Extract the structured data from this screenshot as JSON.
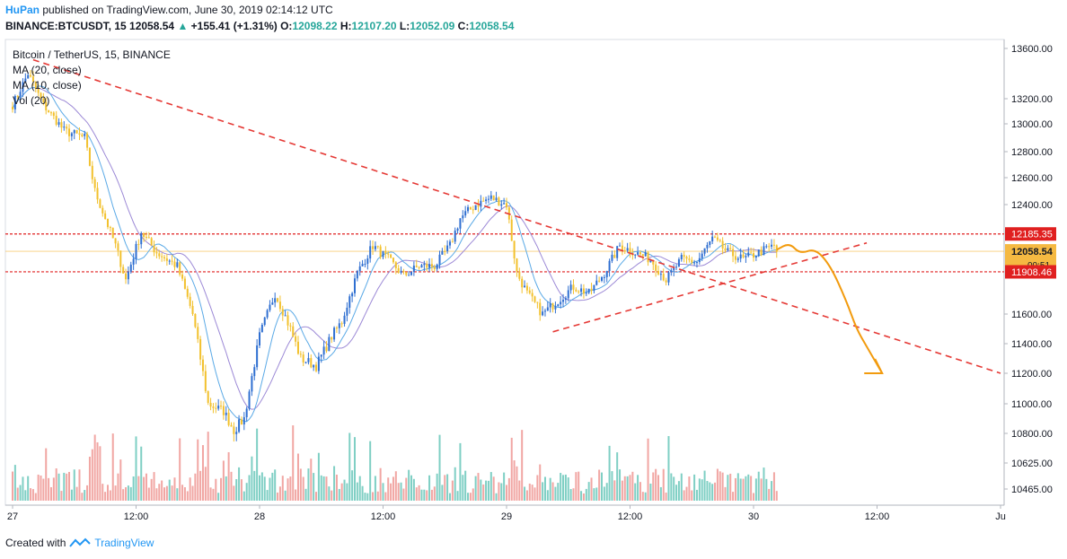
{
  "header": {
    "author": "HuPan",
    "published": "published on TradingView.com, June 30, 2019 02:14:12 UTC",
    "symbol": "BINANCE:BTCUSDT, 15",
    "last": "12058.54",
    "change": "+155.41 (+1.31%)",
    "o_label": "O:",
    "o": "12098.22",
    "h_label": "H:",
    "h": "12107.20",
    "l_label": "L:",
    "l": "12052.09",
    "c_label": "C:",
    "c": "12058.54"
  },
  "legend": {
    "title": "Bitcoin / TetherUS, 15, BINANCE",
    "ma20": "MA (20, close)",
    "ma10": "MA (10, close)",
    "vol": "Vol (20)"
  },
  "price_tags": {
    "upper_level": "12185.35",
    "last_price": "12058.54",
    "countdown": "00:51",
    "lower_level": "11908.46"
  },
  "footer": {
    "created_with": "Created with",
    "brand": "TradingView"
  },
  "colors": {
    "up": "#2f6fd1",
    "down": "#f2c12e",
    "ma20": "#9c89d6",
    "ma10": "#5aa9e6",
    "level": "#e02020",
    "trend": "#e53935",
    "forecast": "#f29b0e",
    "vol_up": "#7fcfc4",
    "vol_down": "#f1a6a3",
    "last_tag": "#f5b942"
  },
  "chart_data": {
    "type": "candlestick",
    "symbol": "BINANCE:BTCUSDT",
    "interval_minutes": 15,
    "y_axis_ticks": [
      13600,
      13200,
      13000,
      12800,
      12600,
      12400,
      12185.35,
      12058.54,
      11908.46,
      11600,
      11400,
      11200,
      11000,
      10800,
      10625,
      10465
    ],
    "y_axis_tick_labels": [
      "13600.00",
      "13200.00",
      "13000.00",
      "12800.00",
      "12600.00",
      "12400.00",
      "12185.35",
      "12058.54",
      "11908.46",
      "11600.00",
      "11400.00",
      "11200.00",
      "11000.00",
      "10800.00",
      "10625.00",
      "10465.00"
    ],
    "x_axis_tick_labels": [
      "27",
      "12:00",
      "28",
      "12:00",
      "29",
      "12:00",
      "30",
      "12:00",
      "Ju"
    ],
    "x_start": "2019-06-27 00:00",
    "x_end": "2019-07-01 00:00",
    "horizontal_levels": [
      12185.35,
      11908.46
    ],
    "anchors": [
      [
        "2019-06-27 00:00",
        13150
      ],
      [
        "2019-06-27 01:30",
        13400
      ],
      [
        "2019-06-27 03:00",
        13150
      ],
      [
        "2019-06-27 05:00",
        12950
      ],
      [
        "2019-06-27 07:00",
        12900
      ],
      [
        "2019-06-27 08:00",
        12500
      ],
      [
        "2019-06-27 09:00",
        12300
      ],
      [
        "2019-06-27 10:00",
        12100
      ],
      [
        "2019-06-27 11:00",
        11850
      ],
      [
        "2019-06-27 12:30",
        12200
      ],
      [
        "2019-06-27 14:00",
        12050
      ],
      [
        "2019-06-27 16:00",
        11950
      ],
      [
        "2019-06-27 17:30",
        11600
      ],
      [
        "2019-06-27 19:00",
        11000
      ],
      [
        "2019-06-27 20:30",
        10950
      ],
      [
        "2019-06-27 21:30",
        10820
      ],
      [
        "2019-06-27 22:30",
        10900
      ],
      [
        "2019-06-28 00:00",
        11450
      ],
      [
        "2019-06-28 01:30",
        11750
      ],
      [
        "2019-06-28 03:00",
        11500
      ],
      [
        "2019-06-28 04:00",
        11300
      ],
      [
        "2019-06-28 05:30",
        11250
      ],
      [
        "2019-06-28 07:00",
        11450
      ],
      [
        "2019-06-28 08:00",
        11550
      ],
      [
        "2019-06-28 09:30",
        11900
      ],
      [
        "2019-06-28 11:00",
        12100
      ],
      [
        "2019-06-28 12:30",
        12000
      ],
      [
        "2019-06-28 14:00",
        11880
      ],
      [
        "2019-06-28 15:30",
        11950
      ],
      [
        "2019-06-28 17:00",
        11950
      ],
      [
        "2019-06-28 18:30",
        12100
      ],
      [
        "2019-06-28 19:30",
        12300
      ],
      [
        "2019-06-28 21:00",
        12400
      ],
      [
        "2019-06-28 22:30",
        12450
      ],
      [
        "2019-06-29 00:00",
        12400
      ],
      [
        "2019-06-29 01:00",
        11900
      ],
      [
        "2019-06-29 02:00",
        11750
      ],
      [
        "2019-06-29 03:30",
        11600
      ],
      [
        "2019-06-29 05:00",
        11700
      ],
      [
        "2019-06-29 06:30",
        11800
      ],
      [
        "2019-06-29 08:00",
        11750
      ],
      [
        "2019-06-29 09:30",
        11900
      ],
      [
        "2019-06-29 11:00",
        12100
      ],
      [
        "2019-06-29 12:30",
        12050
      ],
      [
        "2019-06-29 14:00",
        12000
      ],
      [
        "2019-06-29 15:30",
        11850
      ],
      [
        "2019-06-29 17:00",
        12000
      ],
      [
        "2019-06-29 18:30",
        11980
      ],
      [
        "2019-06-29 20:00",
        12150
      ],
      [
        "2019-06-29 21:30",
        12050
      ],
      [
        "2019-06-29 23:00",
        12000
      ],
      [
        "2019-06-30 00:30",
        12050
      ],
      [
        "2019-06-30 02:00",
        12100
      ],
      [
        "2019-06-30 02:15",
        12058.54
      ]
    ],
    "trendlines": [
      {
        "from": [
          "2019-06-27 02:00",
          13690
        ],
        "to": [
          "2019-07-01 00:00",
          11200
        ]
      },
      {
        "from": [
          "2019-06-29 04:30",
          11480
        ],
        "to": [
          "2019-06-30 11:00",
          12120
        ]
      }
    ],
    "forecast_path": [
      [
        "2019-06-30 02:15",
        12070
      ],
      [
        "2019-06-30 03:30",
        12120
      ],
      [
        "2019-06-30 04:30",
        12040
      ],
      [
        "2019-06-30 06:00",
        12080
      ],
      [
        "2019-06-30 07:30",
        11950
      ],
      [
        "2019-06-30 09:00",
        11700
      ],
      [
        "2019-06-30 10:00",
        11500
      ],
      [
        "2019-06-30 11:00",
        11380
      ],
      [
        "2019-06-30 12:30",
        11200
      ]
    ],
    "indicators": [
      "MA (20, close)",
      "MA (10, close)",
      "Vol (20)"
    ]
  }
}
